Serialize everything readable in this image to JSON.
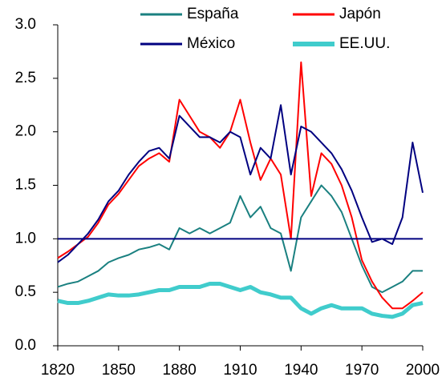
{
  "chart_data": {
    "type": "line",
    "x": [
      1820,
      1825,
      1830,
      1835,
      1840,
      1845,
      1850,
      1855,
      1860,
      1865,
      1870,
      1875,
      1880,
      1885,
      1890,
      1895,
      1900,
      1905,
      1910,
      1915,
      1920,
      1925,
      1930,
      1935,
      1940,
      1945,
      1950,
      1955,
      1960,
      1965,
      1970,
      1975,
      1980,
      1985,
      1990,
      1995,
      2000
    ],
    "series": [
      {
        "name": "EE.UU.",
        "color": "#40cccc",
        "width": 5,
        "values": [
          0.42,
          0.4,
          0.4,
          0.42,
          0.45,
          0.48,
          0.47,
          0.47,
          0.48,
          0.5,
          0.52,
          0.52,
          0.55,
          0.55,
          0.55,
          0.58,
          0.58,
          0.55,
          0.52,
          0.55,
          0.5,
          0.48,
          0.45,
          0.45,
          0.35,
          0.3,
          0.35,
          0.38,
          0.35,
          0.35,
          0.35,
          0.3,
          0.28,
          0.27,
          0.3,
          0.38,
          0.4
        ]
      },
      {
        "name": "España",
        "color": "#1a8080",
        "width": 2,
        "values": [
          0.55,
          0.58,
          0.6,
          0.65,
          0.7,
          0.78,
          0.82,
          0.85,
          0.9,
          0.92,
          0.95,
          0.9,
          1.1,
          1.05,
          1.1,
          1.05,
          1.1,
          1.15,
          1.4,
          1.2,
          1.3,
          1.1,
          1.05,
          0.7,
          1.2,
          1.35,
          1.5,
          1.4,
          1.25,
          1.0,
          0.75,
          0.55,
          0.5,
          0.55,
          0.6,
          0.7,
          0.7
        ]
      },
      {
        "name": "Japón",
        "color": "#ff0000",
        "width": 2,
        "values": [
          0.82,
          0.88,
          0.95,
          1.02,
          1.15,
          1.32,
          1.42,
          1.55,
          1.68,
          1.75,
          1.8,
          1.72,
          2.3,
          2.15,
          2.0,
          1.95,
          1.85,
          2.0,
          2.3,
          1.9,
          1.55,
          1.75,
          1.6,
          1.0,
          2.65,
          1.4,
          1.8,
          1.7,
          1.5,
          1.2,
          0.8,
          0.6,
          0.45,
          0.35,
          0.35,
          0.42,
          0.5
        ]
      },
      {
        "name": "México",
        "color": "#000080",
        "width": 2,
        "values": [
          0.78,
          0.85,
          0.95,
          1.05,
          1.18,
          1.35,
          1.45,
          1.6,
          1.72,
          1.82,
          1.85,
          1.75,
          2.15,
          2.05,
          1.95,
          1.95,
          1.9,
          2.0,
          1.95,
          1.6,
          1.85,
          1.75,
          2.25,
          1.6,
          2.05,
          2.0,
          1.9,
          1.8,
          1.65,
          1.45,
          1.2,
          0.97,
          1.0,
          0.95,
          1.2,
          1.9,
          1.43
        ]
      }
    ],
    "reference_line": {
      "value": 1,
      "color": "#000080"
    },
    "xlim": [
      1820,
      2000
    ],
    "xticks": [
      1820,
      1850,
      1880,
      1910,
      1940,
      1970,
      2000
    ],
    "ylim": [
      0,
      3
    ],
    "yticks": [
      {
        "value": 0,
        "label": "0.0"
      },
      {
        "value": 0.5,
        "label": "0.5"
      },
      {
        "value": 1,
        "label": "1.0"
      },
      {
        "value": 1.5,
        "label": "1.5"
      },
      {
        "value": 2,
        "label": "2.0"
      },
      {
        "value": 2.5,
        "label": "2.5"
      },
      {
        "value": 3,
        "label": "3.0"
      }
    ]
  }
}
